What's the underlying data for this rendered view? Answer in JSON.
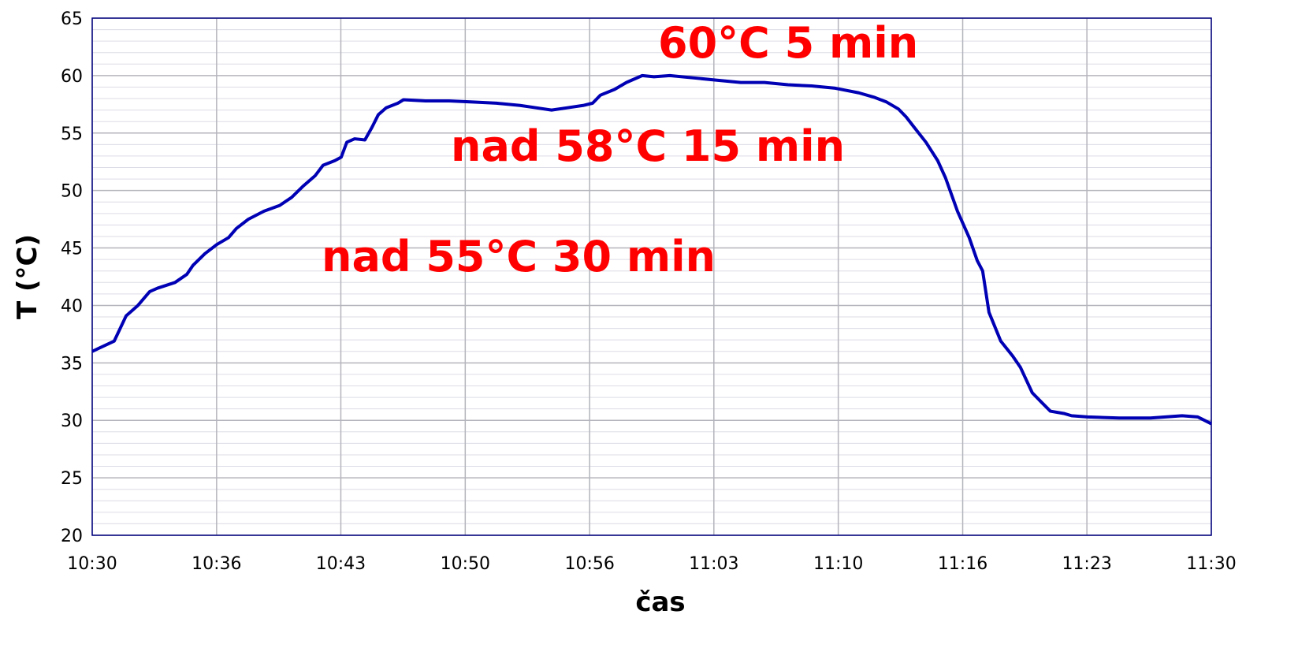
{
  "chart_data": {
    "type": "line",
    "x_label": "čas",
    "y_label": "T (°C)",
    "annotations": [
      "60°C 5 min",
      "nad 58°C 15 min",
      "nad 55°C 30 min"
    ],
    "x": [
      630,
      631.18,
      631.82,
      632.45,
      633.08,
      633.5,
      634.44,
      635.07,
      635.41,
      636.04,
      636.68,
      637.31,
      637.73,
      638.37,
      639.21,
      640.05,
      640.69,
      641.32,
      641.96,
      642.38,
      643.01,
      643.35,
      643.65,
      644.07,
      644.62,
      645.0,
      645.34,
      645.76,
      646.39,
      646.69,
      647.87,
      649.14,
      650.4,
      651.67,
      652.94,
      653.79,
      654.63,
      655.48,
      656.32,
      656.83,
      657.25,
      658.01,
      658.64,
      659.49,
      660.12,
      660.97,
      662.24,
      663.5,
      664.77,
      666.04,
      667.3,
      668.57,
      669.84,
      671.1,
      671.95,
      672.59,
      673.22,
      673.64,
      674.07,
      674.7,
      675.33,
      675.75,
      676.39,
      677.02,
      677.45,
      677.74,
      678.08,
      678.71,
      679.35,
      679.77,
      680.4,
      680.82,
      681.37,
      682.09,
      682.51,
      683.36,
      685.05,
      686.74,
      688.43,
      689.27,
      690
    ],
    "series": [
      {
        "name": "T",
        "color": "#0000b4",
        "values": [
          36.0,
          36.9,
          39.1,
          40.0,
          41.2,
          41.5,
          42.0,
          42.7,
          43.5,
          44.5,
          45.3,
          45.9,
          46.7,
          47.5,
          48.2,
          48.7,
          49.4,
          50.4,
          51.3,
          52.2,
          52.6,
          52.9,
          54.2,
          54.5,
          54.4,
          55.5,
          56.6,
          57.2,
          57.6,
          57.9,
          57.8,
          57.8,
          57.7,
          57.6,
          57.4,
          57.2,
          57.0,
          57.2,
          57.4,
          57.6,
          58.3,
          58.8,
          59.4,
          60.0,
          59.9,
          60.0,
          59.8,
          59.6,
          59.4,
          59.4,
          59.2,
          59.1,
          58.9,
          58.5,
          58.1,
          57.7,
          57.1,
          56.4,
          55.5,
          54.2,
          52.6,
          51.1,
          48.2,
          45.9,
          43.9,
          43.0,
          39.4,
          36.9,
          35.6,
          34.6,
          32.4,
          31.7,
          30.8,
          30.6,
          30.4,
          30.3,
          30.2,
          30.2,
          30.4,
          30.3,
          29.7
        ]
      }
    ],
    "xlim": [
      630,
      690
    ],
    "xticks": [
      {
        "value": 630,
        "label": "10:30"
      },
      {
        "value": 636.67,
        "label": "10:36"
      },
      {
        "value": 643.33,
        "label": "10:43"
      },
      {
        "value": 650,
        "label": "10:50"
      },
      {
        "value": 656.67,
        "label": "10:56"
      },
      {
        "value": 663.33,
        "label": "11:03"
      },
      {
        "value": 670,
        "label": "11:10"
      },
      {
        "value": 676.67,
        "label": "11:16"
      },
      {
        "value": 683.33,
        "label": "11:23"
      },
      {
        "value": 690,
        "label": "11:30"
      }
    ],
    "ylim": [
      20,
      65
    ],
    "yticks": [
      20,
      25,
      30,
      35,
      40,
      45,
      50,
      55,
      60,
      65
    ],
    "grid": true
  }
}
